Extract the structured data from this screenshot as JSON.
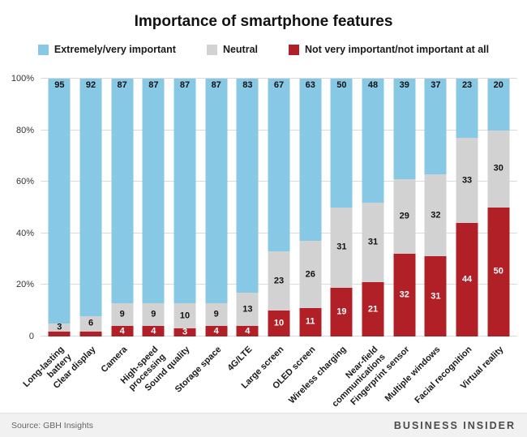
{
  "title": "Importance of smartphone features",
  "legend": [
    {
      "label": "Extremely/very important",
      "color": "#87C9E5"
    },
    {
      "label": "Neutral",
      "color": "#D2D2D2"
    },
    {
      "label": "Not very important/not important at all",
      "color": "#B02026"
    }
  ],
  "footer": {
    "source": "Source: GBH Insights",
    "brand": "BUSINESS INSIDER"
  },
  "chart_data": {
    "type": "bar",
    "stacked": true,
    "percent": true,
    "title": "Importance of smartphone features",
    "categories": [
      "Long-lasting\nbattery",
      "Clear display",
      "Camera",
      "High-speed\nprocessing",
      "Sound quality",
      "Storage space",
      "4G/LTE",
      "Large screen",
      "OLED screen",
      "Wireless charging",
      "Near-field\ncommunications",
      "Fingerprint sensor",
      "Multiple windows",
      "Facial recognition",
      "Virtual reality"
    ],
    "series": [
      {
        "name": "Extremely/very important",
        "color": "#87C9E5",
        "values": [
          95,
          92,
          87,
          87,
          87,
          87,
          83,
          67,
          63,
          50,
          48,
          39,
          37,
          23,
          20
        ]
      },
      {
        "name": "Neutral",
        "color": "#D2D2D2",
        "values": [
          3,
          6,
          9,
          9,
          10,
          9,
          13,
          23,
          26,
          31,
          31,
          29,
          32,
          33,
          30
        ]
      },
      {
        "name": "Not very important/not important at all",
        "color": "#B02026",
        "values": [
          2,
          2,
          4,
          4,
          3,
          4,
          4,
          10,
          11,
          19,
          21,
          32,
          31,
          44,
          50
        ]
      }
    ],
    "yticks": [
      "0",
      "20%",
      "40%",
      "60%",
      "80%",
      "100%"
    ],
    "ylim": [
      0,
      100
    ],
    "grid": true,
    "legend_position": "top",
    "value_label_min": 3
  }
}
